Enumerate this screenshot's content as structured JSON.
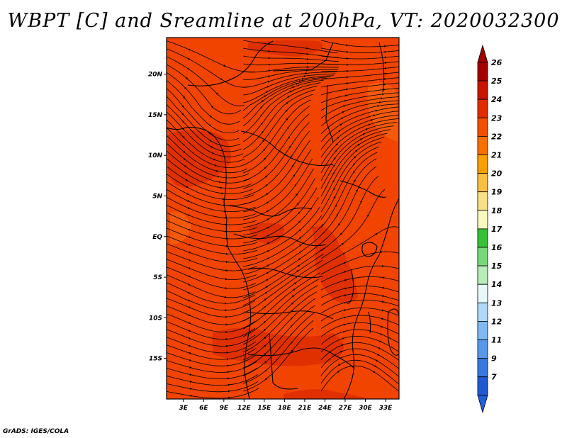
{
  "title": "WBPT [C] and Sreamline at 200hPa, VT: 2020032300",
  "footer": "GrADS: IGES/COLA",
  "map": {
    "lon_labels": [
      "3E",
      "6E",
      "9E",
      "12E",
      "15E",
      "18E",
      "21E",
      "24E",
      "27E",
      "30E",
      "33E"
    ],
    "lat_labels": [
      "20N",
      "15N",
      "10N",
      "5N",
      "EQ",
      "5S",
      "10S",
      "15S"
    ],
    "lon_values": [
      3,
      6,
      9,
      12,
      15,
      18,
      21,
      24,
      27,
      30,
      33
    ],
    "lat_values": [
      20,
      15,
      10,
      5,
      0,
      -5,
      -10,
      -15
    ],
    "lon_range": [
      0.5,
      35
    ],
    "lat_range": [
      -20,
      24.5
    ]
  },
  "colorbar": {
    "labels": [
      "26",
      "25",
      "24",
      "23",
      "22",
      "21",
      "20",
      "19",
      "18",
      "17",
      "16",
      "15",
      "14",
      "13",
      "12",
      "11",
      "9",
      "7"
    ],
    "colors": [
      "#a50000",
      "#c81400",
      "#e02c00",
      "#f05000",
      "#f87000",
      "#f8a000",
      "#f8c040",
      "#f8e088",
      "#f8f8c0",
      "#38c038",
      "#78d878",
      "#b8ecb8",
      "#e8f8f8",
      "#b0d8f8",
      "#80b8f0",
      "#5898e8",
      "#3878e0",
      "#2058d0"
    ],
    "cap_top_color": "#a00000",
    "cap_bottom_color": "#1f5fd8"
  },
  "field": {
    "base_color": "#f04400",
    "patch_color": "#e03000",
    "light_color": "#f45a0a"
  }
}
